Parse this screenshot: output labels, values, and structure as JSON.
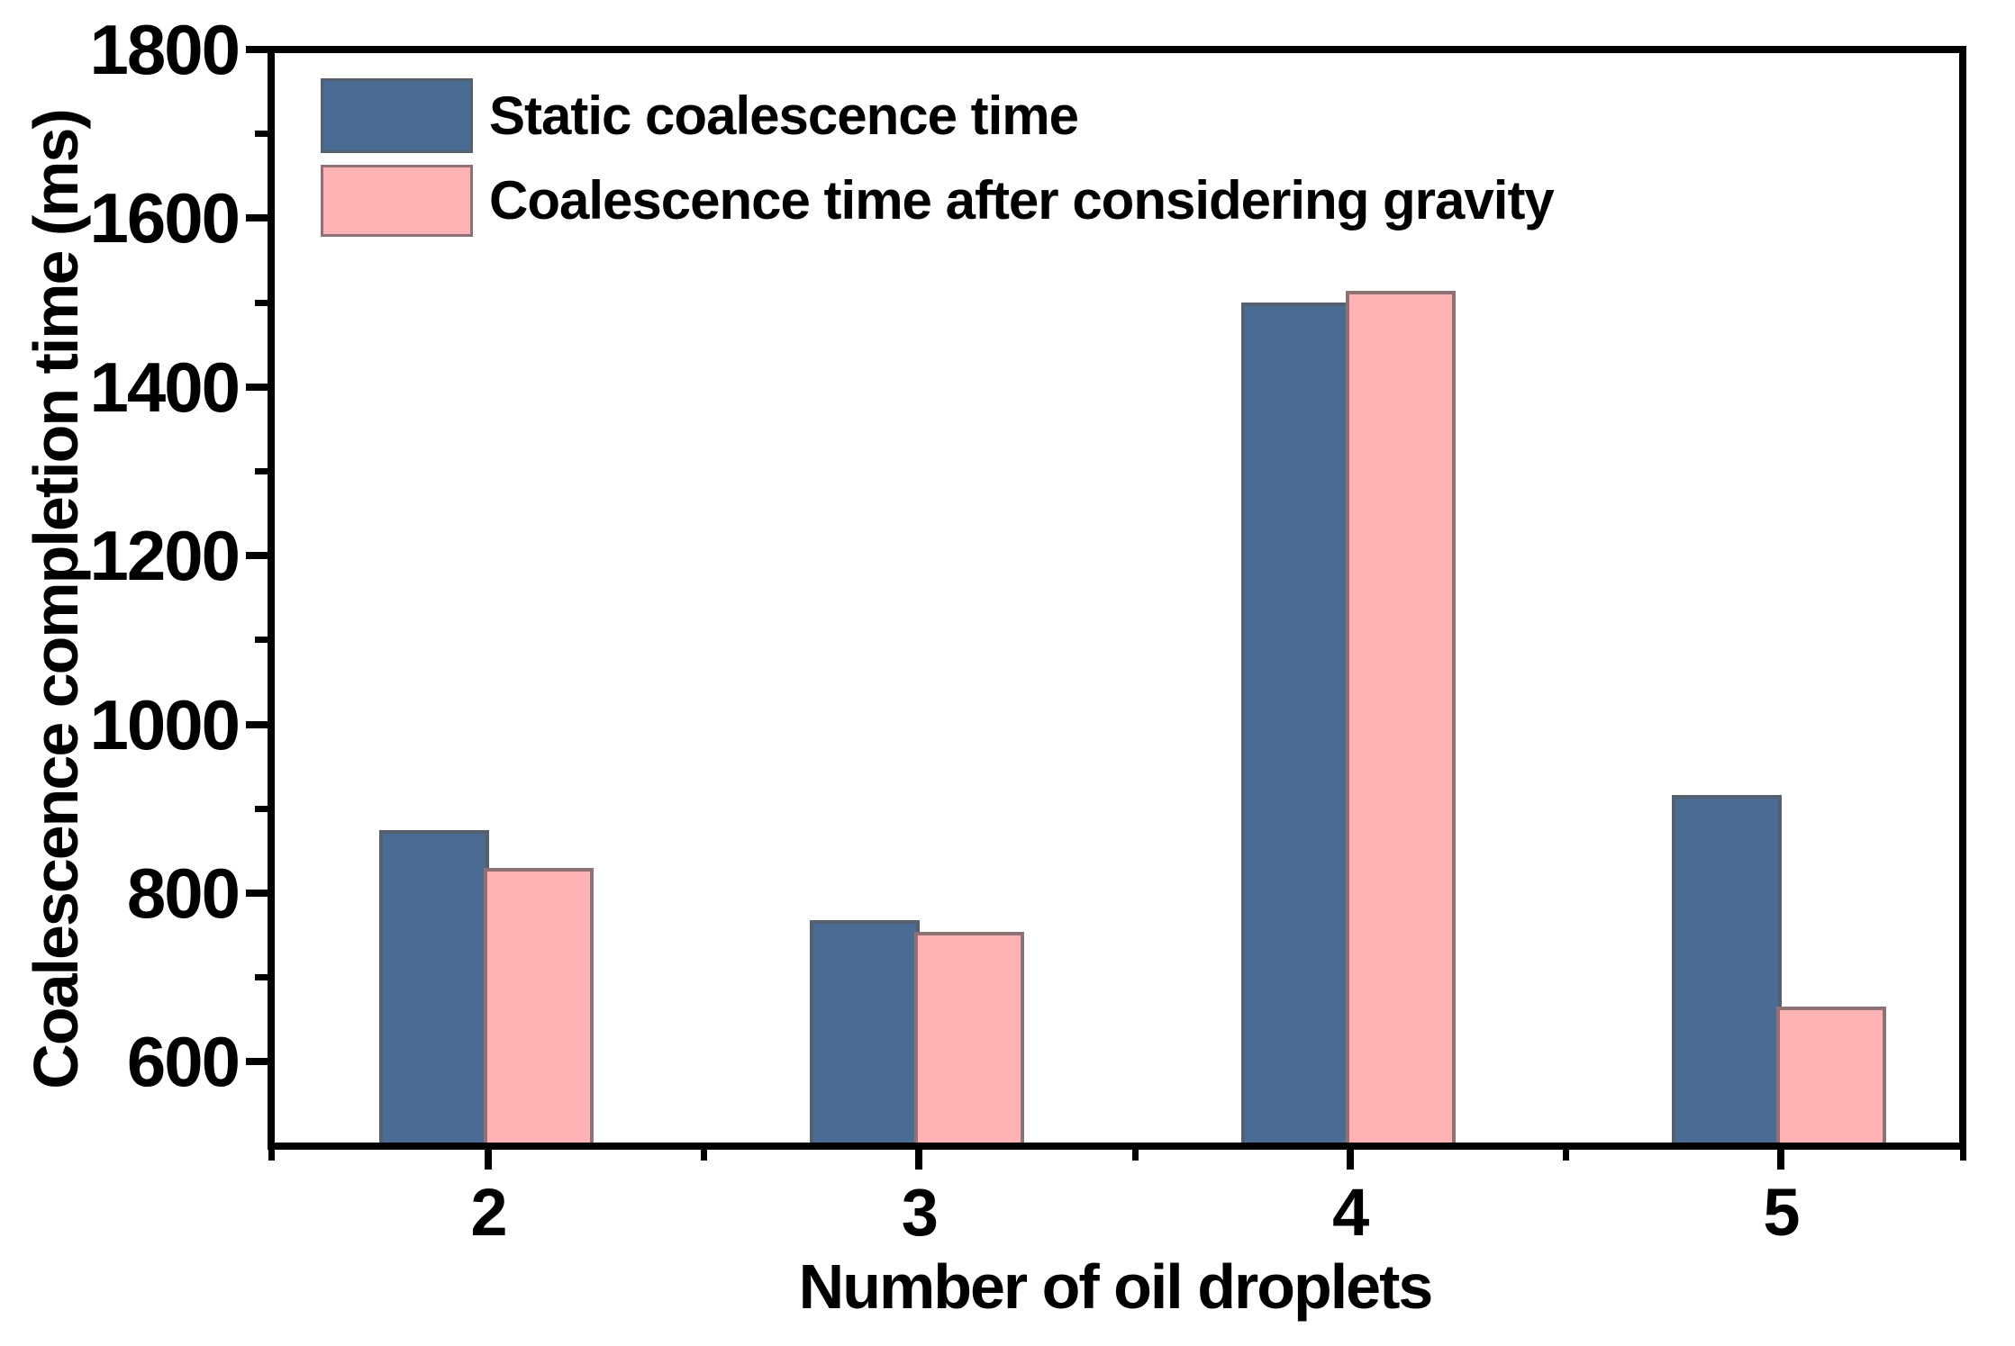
{
  "figure": {
    "background": "#ffffff",
    "axis_color": "#000000",
    "text_color": "#000000"
  },
  "chart_data": {
    "type": "bar",
    "title": "",
    "xlabel": "Number of oil droplets",
    "ylabel": "Coalescence completion time (ms)",
    "categories": [
      "2",
      "3",
      "4",
      "5"
    ],
    "series": [
      {
        "name": "Static coalescence time",
        "color": "#4a6b93",
        "border_color": "#55606e",
        "values": [
          875,
          768,
          1500,
          916
        ]
      },
      {
        "name": "Coalescence time after considering gravity",
        "color": "#ffb3b5",
        "border_color": "#8e7174",
        "values": [
          830,
          754,
          1514,
          665
        ]
      }
    ],
    "ylim": [
      500,
      1800
    ],
    "y_major_ticks": [
      600,
      800,
      1000,
      1200,
      1400,
      1600,
      1800
    ],
    "y_minor_ticks": [
      700,
      900,
      1100,
      1300,
      1500,
      1700
    ],
    "grid": false,
    "legend_position": "top-left",
    "frame": "full-box"
  }
}
